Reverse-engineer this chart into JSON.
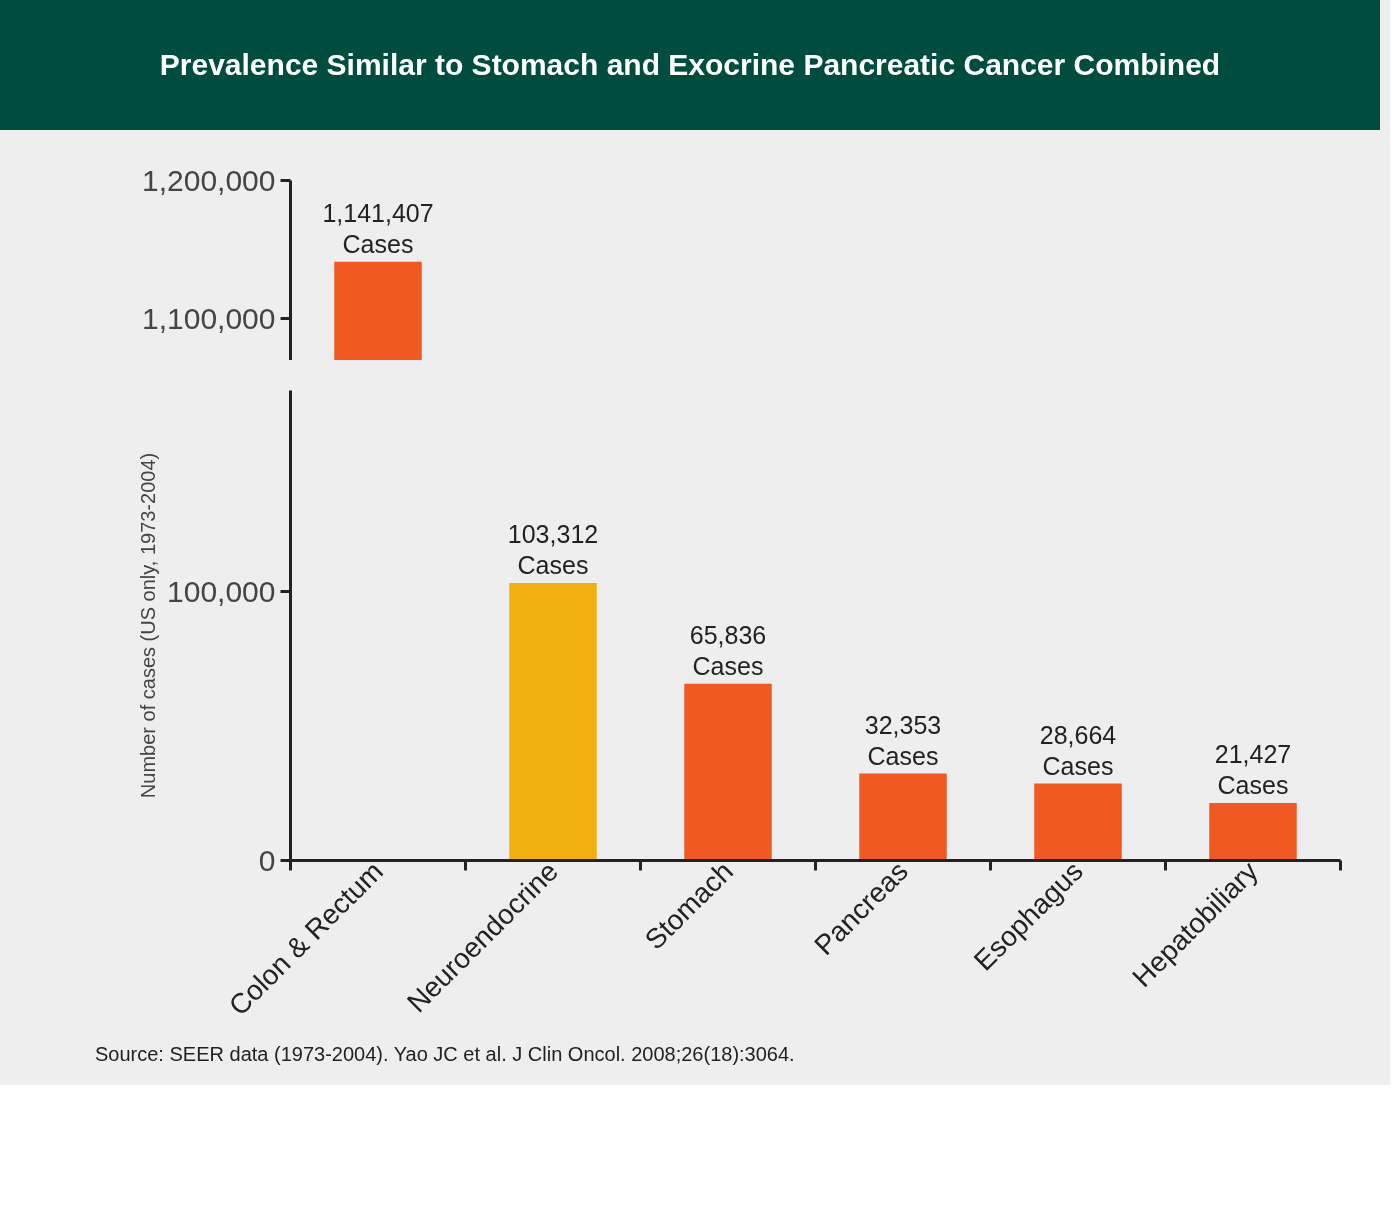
{
  "chart_data": [
    {
      "type": "bar",
      "title": "Prevalence Similar to Stomach and Exocrine Pancreatic Cancer Combined",
      "categories": [
        null
      ],
      "values": [
        1141407
      ],
      "colors": [
        "#f05a22"
      ],
      "ylim": [
        1070000,
        1200000
      ],
      "yticks": [
        {
          "value": 1100000,
          "label": "1,100,000"
        },
        {
          "value": 1200000,
          "label": "1,200,000"
        }
      ],
      "value_labels": [
        "1,141,407\nCases"
      ]
    },
    {
      "type": "bar",
      "categories": [
        "Colon & Rectum",
        "Neuroendocrine",
        "Stomach",
        "Pancreas",
        "Esophagus",
        "Hepatobiliary"
      ],
      "values": [
        null,
        103312,
        65836,
        32353,
        28664,
        21427
      ],
      "colors": [
        "#f05a22",
        "#f0b010",
        "#f05a22",
        "#f05a22",
        "#f05a22",
        "#f05a22"
      ],
      "ylim": [
        0,
        175000
      ],
      "yticks": [
        0,
        {
          "value": 100000,
          "label": "100,000"
        }
      ],
      "ylabel": "Number of cases (US only, 1973-2004)",
      "value_labels": [
        null,
        "103,312\nCases",
        "65,836\nCases",
        "32,353\nCases",
        "28,664\nCases",
        "21,427\nCases"
      ],
      "annotations": [
        "Source: SEER data (1973-2004). Yao JC et al. J Clin Oncol. 2008;26(18):3064."
      ]
    }
  ]
}
